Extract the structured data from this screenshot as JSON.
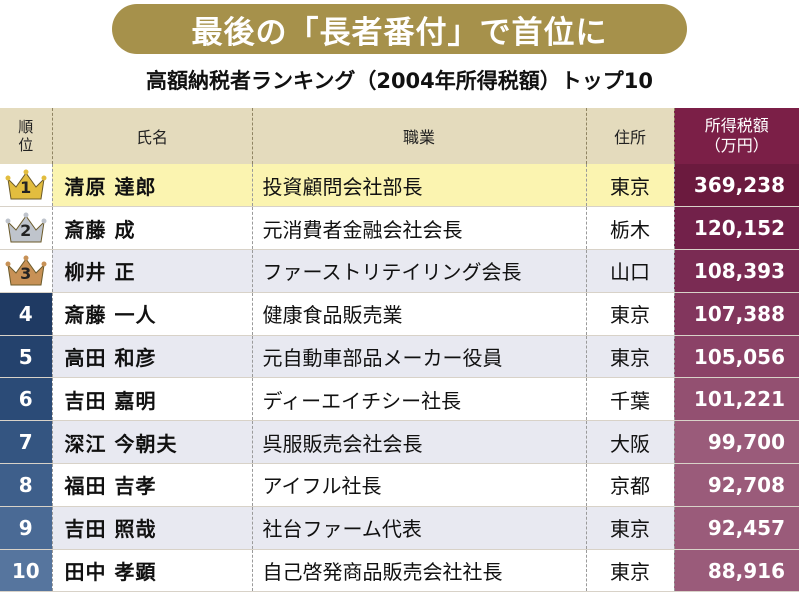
{
  "banner": {
    "title": "最後の「長者番付」で首位に"
  },
  "subtitle": "高額納税者ランキング（2004年所得税額）トップ10",
  "headers": {
    "rank": "順位",
    "name": "氏名",
    "job": "職業",
    "location": "住所",
    "tax_line1": "所得税額",
    "tax_line2": "（万円）"
  },
  "colors": {
    "banner": "#a6914b",
    "header_bg": "#e4dbbd",
    "tax_header_bg": "#7b1f47",
    "row_highlight": "#fbf4b0",
    "row_alt": "#e8e9f1",
    "rank_dark": "#1f3a63",
    "tax_cell_dark": "#6b1a3e",
    "tax_cell_light": "#956079",
    "crown_gold": "#e2bd3f",
    "crown_silver": "#bfc4cc",
    "crown_bronze": "#c79156"
  },
  "rows": [
    {
      "rank": "1",
      "name": "清原 達郎",
      "job": "投資顧問会社部長",
      "location": "東京",
      "tax": "369,238",
      "crown": "gold"
    },
    {
      "rank": "2",
      "name": "斎藤 成",
      "job": "元消費者金融会社会長",
      "location": "栃木",
      "tax": "120,152",
      "crown": "silver"
    },
    {
      "rank": "3",
      "name": "柳井 正",
      "job": "ファーストリテイリング会長",
      "location": "山口",
      "tax": "108,393",
      "crown": "bronze"
    },
    {
      "rank": "4",
      "name": "斎藤 一人",
      "job": "健康食品販売業",
      "location": "東京",
      "tax": "107,388"
    },
    {
      "rank": "5",
      "name": "高田 和彦",
      "job": "元自動車部品メーカー役員",
      "location": "東京",
      "tax": "105,056"
    },
    {
      "rank": "6",
      "name": "吉田 嘉明",
      "job": "ディーエイチシー社長",
      "location": "千葉",
      "tax": "101,221"
    },
    {
      "rank": "7",
      "name": "深江 今朝夫",
      "job": "呉服販売会社会長",
      "location": "大阪",
      "tax": "99,700"
    },
    {
      "rank": "8",
      "name": "福田 吉孝",
      "job": "アイフル社長",
      "location": "京都",
      "tax": "92,708"
    },
    {
      "rank": "9",
      "name": "吉田 照哉",
      "job": "社台ファーム代表",
      "location": "東京",
      "tax": "92,457"
    },
    {
      "rank": "10",
      "name": "田中 孝顕",
      "job": "自己啓発商品販売会社社長",
      "location": "東京",
      "tax": "88,916"
    }
  ]
}
